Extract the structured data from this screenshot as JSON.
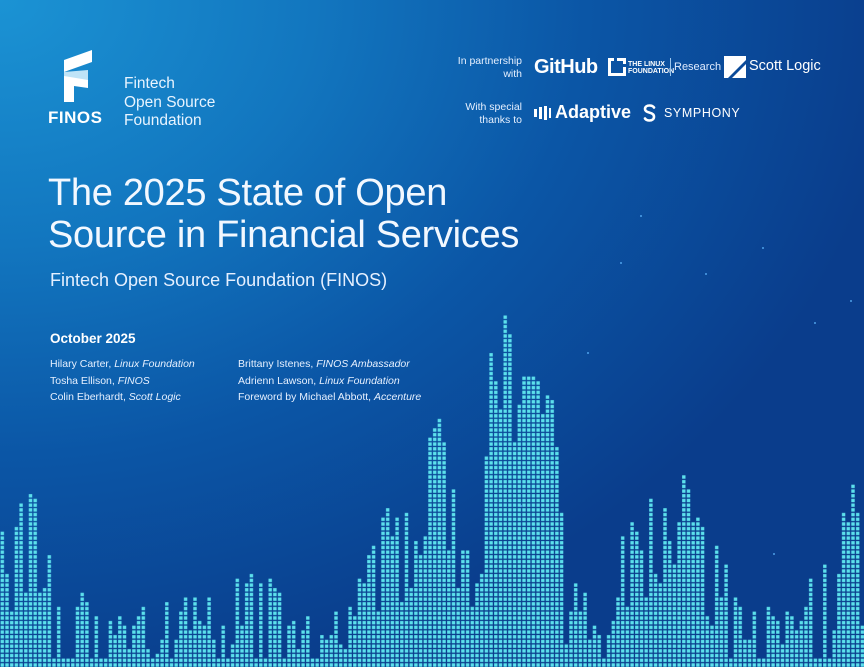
{
  "logo": {
    "wordmark": "FINOS",
    "org_lines": [
      "Fintech",
      "Open Source",
      "Foundation"
    ]
  },
  "partners": {
    "partnership_label": [
      "In partnership",
      "with"
    ],
    "partnership_brands": [
      "GitHub",
      "THE LINUX FOUNDATION",
      "Research",
      "Scott Logic"
    ],
    "thanks_label": [
      "With special",
      "thanks to"
    ],
    "thanks_brands": [
      "Adaptive",
      "SYMPHONY"
    ]
  },
  "title_lines": [
    "The 2025 State of Open",
    "Source in Financial Services"
  ],
  "subtitle": "Fintech Open Source Foundation (FINOS)",
  "date": "October 2025",
  "authors_left": [
    {
      "name": "Hilary Carter, ",
      "org": "Linux Foundation"
    },
    {
      "name": "Tosha Ellison, ",
      "org": "FINOS"
    },
    {
      "name": "Colin Eberhardt, ",
      "org": "Scott Logic"
    }
  ],
  "authors_right": [
    {
      "name": "Brittany Istenes, ",
      "org": "FINOS Ambassador"
    },
    {
      "name": "Adrienn Lawson, ",
      "org": "Linux Foundation"
    },
    {
      "name": "Foreword by Michael Abbott, ",
      "org": "Accenture"
    }
  ],
  "colors": {
    "background_light": "#1b93d4",
    "background_dark": "#0a3d8c",
    "bars_top": "#4fd6ea",
    "bars_bottom": "#1860c8"
  }
}
